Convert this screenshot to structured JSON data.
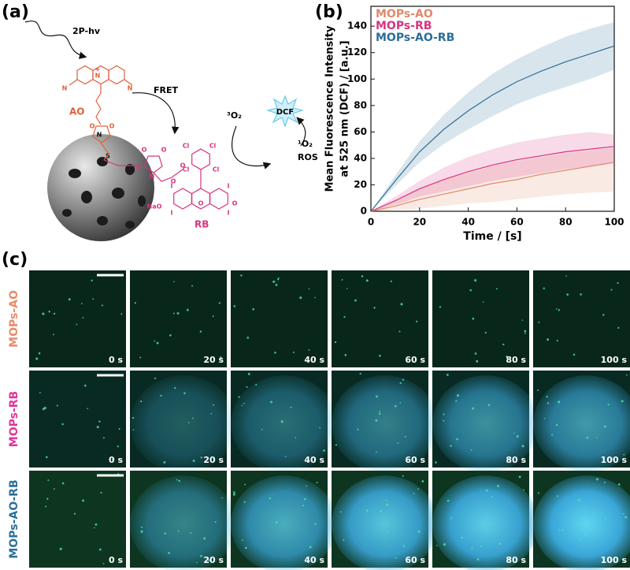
{
  "panels": [
    "(a)",
    "(b)",
    "(c)"
  ],
  "diagram": {
    "excitation": "2P-hv",
    "donor": "AO",
    "transfer": "FRET",
    "acceptor": "RB",
    "triplet_oxygen": "³O₂",
    "probe": "DCF",
    "singlet_oxygen": "¹O₂",
    "ros": "ROS",
    "atoms": [
      "N",
      "N",
      "N",
      "O",
      "O",
      "N",
      "S",
      "S",
      "O",
      "O",
      "N",
      "O",
      "O",
      "Cl",
      "Cl",
      "Cl",
      "Cl",
      "I",
      "I",
      "I",
      "I",
      "NaO",
      "O",
      "O",
      "+"
    ]
  },
  "chart_data": {
    "type": "line",
    "xlabel": "Time / [s]",
    "ylabel": [
      "Mean Fluorescence Intensity",
      "at 525 nm (DCF) / [a.u.]"
    ],
    "x": [
      0,
      10,
      20,
      30,
      40,
      50,
      60,
      70,
      80,
      90,
      100
    ],
    "xlim": [
      0,
      100
    ],
    "xticks": [
      0,
      20,
      40,
      60,
      80,
      100
    ],
    "ylim": [
      0,
      155
    ],
    "yticks": [
      0,
      20,
      40,
      60,
      80,
      100,
      120,
      140
    ],
    "legend": "upper left",
    "series": [
      {
        "name": "MOPs-AO",
        "color": "#e08a6c",
        "values": [
          0,
          4,
          9,
          13,
          17,
          21,
          24,
          28,
          31,
          34,
          37
        ],
        "upper": [
          0,
          8,
          17,
          24,
          29,
          34,
          38,
          41,
          44,
          46,
          48
        ],
        "lower": [
          0,
          1,
          2,
          4,
          6,
          7,
          9,
          11,
          13,
          14,
          15
        ]
      },
      {
        "name": "MOPs-RB",
        "color": "#d9347f",
        "values": [
          0,
          8,
          17,
          24,
          30,
          35,
          39,
          42,
          45,
          47,
          49
        ],
        "upper": [
          0,
          11,
          23,
          33,
          41,
          47,
          52,
          55,
          58,
          60,
          58
        ],
        "lower": [
          0,
          5,
          11,
          15,
          19,
          23,
          26,
          29,
          32,
          34,
          37
        ]
      },
      {
        "name": "MOPs-AO-RB",
        "color": "#2b6f98",
        "values": [
          0,
          23,
          45,
          62,
          76,
          88,
          98,
          106,
          113,
          119,
          125
        ],
        "upper": [
          0,
          27,
          53,
          73,
          90,
          104,
          115,
          124,
          132,
          138,
          143
        ],
        "lower": [
          0,
          19,
          37,
          51,
          62,
          72,
          81,
          88,
          94,
          100,
          107
        ]
      }
    ]
  },
  "micrographs": {
    "rows": [
      "MOPs-AO",
      "MOPs-RB",
      "MOPs-AO-RB"
    ],
    "row_colors": [
      "#e88a6a",
      "#e0339a",
      "#2b6f98"
    ],
    "times": [
      "0 s",
      "20 s",
      "40 s",
      "60 s",
      "80 s",
      "100 s"
    ]
  }
}
